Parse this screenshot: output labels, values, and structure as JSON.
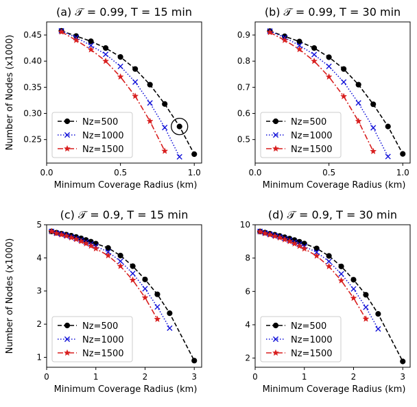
{
  "chart_data": [
    {
      "type": "line",
      "title": "(a) 𝒯 = 0.99, T = 15 min",
      "xlabel": "Minimum Coverage Radius (km)",
      "ylabel": "Number of Nodes (x1000)",
      "xlim": [
        0,
        1.05
      ],
      "ylim": [
        0.205,
        0.475
      ],
      "xticks": [
        0.0,
        0.5,
        1.0
      ],
      "xtick_labels": [
        "0.0",
        "0.5",
        "1.0"
      ],
      "yticks": [
        0.25,
        0.3,
        0.35,
        0.4,
        0.45
      ],
      "ytick_labels": [
        "0.25",
        "0.30",
        "0.35",
        "0.40",
        "0.45"
      ],
      "legend": "lower-left",
      "grid": false,
      "annotation": {
        "type": "circle",
        "x": 0.9,
        "y": 0.275
      },
      "series": [
        {
          "name": "Nz=500",
          "color": "#000000",
          "marker": "circle",
          "linestyle": "dashed",
          "x": [
            0.1,
            0.2,
            0.3,
            0.4,
            0.5,
            0.6,
            0.7,
            0.8,
            0.9,
            1.0
          ],
          "y": [
            0.458,
            0.448,
            0.438,
            0.425,
            0.408,
            0.385,
            0.355,
            0.318,
            0.275,
            0.222
          ]
        },
        {
          "name": "Nz=1000",
          "color": "#1010d8",
          "marker": "x",
          "linestyle": "dotted",
          "x": [
            0.1,
            0.2,
            0.3,
            0.4,
            0.5,
            0.6,
            0.7,
            0.8,
            0.9
          ],
          "y": [
            0.458,
            0.445,
            0.43,
            0.413,
            0.39,
            0.36,
            0.32,
            0.273,
            0.217
          ]
        },
        {
          "name": "Nz=1500",
          "color": "#d81e1e",
          "marker": "star",
          "linestyle": "dashdot",
          "x": [
            0.1,
            0.2,
            0.3,
            0.4,
            0.5,
            0.6,
            0.7,
            0.8
          ],
          "y": [
            0.456,
            0.44,
            0.422,
            0.4,
            0.37,
            0.333,
            0.285,
            0.228
          ]
        }
      ]
    },
    {
      "type": "line",
      "title": "(b) 𝒯 = 0.99, T = 30 min",
      "xlabel": "Minimum Coverage Radius (km)",
      "ylabel": "",
      "xlim": [
        0,
        1.05
      ],
      "ylim": [
        0.41,
        0.95
      ],
      "xticks": [
        0.0,
        0.5,
        1.0
      ],
      "xtick_labels": [
        "0.0",
        "0.5",
        "1.0"
      ],
      "yticks": [
        0.5,
        0.6,
        0.7,
        0.8,
        0.9
      ],
      "ytick_labels": [
        "0.5",
        "0.6",
        "0.7",
        "0.8",
        "0.9"
      ],
      "legend": "lower-left",
      "grid": false,
      "series": [
        {
          "name": "Nz=500",
          "color": "#000000",
          "marker": "circle",
          "linestyle": "dashed",
          "x": [
            0.1,
            0.2,
            0.3,
            0.4,
            0.5,
            0.6,
            0.7,
            0.8,
            0.9,
            1.0
          ],
          "y": [
            0.915,
            0.895,
            0.875,
            0.85,
            0.815,
            0.77,
            0.71,
            0.635,
            0.55,
            0.445
          ]
        },
        {
          "name": "Nz=1000",
          "color": "#1010d8",
          "marker": "x",
          "linestyle": "dotted",
          "x": [
            0.1,
            0.2,
            0.3,
            0.4,
            0.5,
            0.6,
            0.7,
            0.8,
            0.9
          ],
          "y": [
            0.915,
            0.89,
            0.86,
            0.825,
            0.78,
            0.72,
            0.64,
            0.545,
            0.435
          ]
        },
        {
          "name": "Nz=1500",
          "color": "#d81e1e",
          "marker": "star",
          "linestyle": "dashdot",
          "x": [
            0.1,
            0.2,
            0.3,
            0.4,
            0.5,
            0.6,
            0.7,
            0.8
          ],
          "y": [
            0.91,
            0.88,
            0.845,
            0.8,
            0.74,
            0.665,
            0.57,
            0.455
          ]
        }
      ]
    },
    {
      "type": "line",
      "title": "(c) 𝒯 = 0.9, T = 15 min",
      "xlabel": "Minimum Coverage Radius (km)",
      "ylabel": "Number of Nodes (x1000)",
      "xlim": [
        0,
        3.15
      ],
      "ylim": [
        0.7,
        5.0
      ],
      "xticks": [
        0,
        1,
        2,
        3
      ],
      "xtick_labels": [
        "0",
        "1",
        "2",
        "3"
      ],
      "yticks": [
        1,
        2,
        3,
        4,
        5
      ],
      "ytick_labels": [
        "1",
        "2",
        "3",
        "4",
        "5"
      ],
      "legend": "lower-left",
      "grid": false,
      "series": [
        {
          "name": "Nz=500",
          "color": "#000000",
          "marker": "circle",
          "linestyle": "dashed",
          "x": [
            0.1,
            0.2,
            0.3,
            0.4,
            0.5,
            0.6,
            0.7,
            0.8,
            0.9,
            1.0,
            1.25,
            1.5,
            1.75,
            2.0,
            2.25,
            2.5,
            3.0
          ],
          "y": [
            4.8,
            4.76,
            4.73,
            4.7,
            4.67,
            4.63,
            4.59,
            4.54,
            4.49,
            4.43,
            4.3,
            4.07,
            3.75,
            3.35,
            2.9,
            2.33,
            0.9
          ]
        },
        {
          "name": "Nz=1000",
          "color": "#1010d8",
          "marker": "x",
          "linestyle": "dotted",
          "x": [
            0.1,
            0.2,
            0.3,
            0.4,
            0.5,
            0.6,
            0.7,
            0.8,
            0.9,
            1.0,
            1.25,
            1.5,
            1.75,
            2.0,
            2.25,
            2.5
          ],
          "y": [
            4.8,
            4.75,
            4.72,
            4.68,
            4.64,
            4.59,
            4.54,
            4.48,
            4.42,
            4.35,
            4.18,
            3.9,
            3.53,
            3.07,
            2.52,
            1.88
          ]
        },
        {
          "name": "Nz=1500",
          "color": "#d81e1e",
          "marker": "star",
          "linestyle": "dashdot",
          "x": [
            0.1,
            0.2,
            0.3,
            0.4,
            0.5,
            0.6,
            0.7,
            0.8,
            0.9,
            1.0,
            1.25,
            1.5,
            1.75,
            2.0,
            2.25
          ],
          "y": [
            4.8,
            4.74,
            4.7,
            4.66,
            4.61,
            4.56,
            4.5,
            4.43,
            4.36,
            4.28,
            4.07,
            3.75,
            3.33,
            2.8,
            2.15
          ]
        }
      ]
    },
    {
      "type": "line",
      "title": "(d) 𝒯 = 0.9, T = 30 min",
      "xlabel": "Minimum Coverage Radius (km)",
      "ylabel": "",
      "xlim": [
        0,
        3.15
      ],
      "ylim": [
        1.45,
        10.0
      ],
      "xticks": [
        0,
        1,
        2,
        3
      ],
      "xtick_labels": [
        "0",
        "1",
        "2",
        "3"
      ],
      "yticks": [
        2,
        4,
        6,
        8,
        10
      ],
      "ytick_labels": [
        "2",
        "4",
        "6",
        "8",
        "10"
      ],
      "legend": "lower-left",
      "grid": false,
      "series": [
        {
          "name": "Nz=500",
          "color": "#000000",
          "marker": "circle",
          "linestyle": "dashed",
          "x": [
            0.1,
            0.2,
            0.3,
            0.4,
            0.5,
            0.6,
            0.7,
            0.8,
            0.9,
            1.0,
            1.25,
            1.5,
            1.75,
            2.0,
            2.25,
            2.5,
            3.0
          ],
          "y": [
            9.6,
            9.53,
            9.46,
            9.4,
            9.33,
            9.25,
            9.17,
            9.08,
            8.98,
            8.87,
            8.58,
            8.13,
            7.5,
            6.7,
            5.8,
            4.65,
            1.8
          ]
        },
        {
          "name": "Nz=1000",
          "color": "#1010d8",
          "marker": "x",
          "linestyle": "dotted",
          "x": [
            0.1,
            0.2,
            0.3,
            0.4,
            0.5,
            0.6,
            0.7,
            0.8,
            0.9,
            1.0,
            1.25,
            1.5,
            1.75,
            2.0,
            2.25,
            2.5
          ],
          "y": [
            9.6,
            9.51,
            9.43,
            9.36,
            9.28,
            9.18,
            9.08,
            8.96,
            8.84,
            8.7,
            8.35,
            7.8,
            7.05,
            6.15,
            5.05,
            3.75
          ]
        },
        {
          "name": "Nz=1500",
          "color": "#d81e1e",
          "marker": "star",
          "linestyle": "dashdot",
          "x": [
            0.1,
            0.2,
            0.3,
            0.4,
            0.5,
            0.6,
            0.7,
            0.8,
            0.9,
            1.0,
            1.25,
            1.5,
            1.75,
            2.0,
            2.25
          ],
          "y": [
            9.58,
            9.48,
            9.4,
            9.31,
            9.22,
            9.11,
            9.0,
            8.86,
            8.72,
            8.56,
            8.13,
            7.5,
            6.65,
            5.6,
            4.35
          ]
        }
      ]
    }
  ]
}
